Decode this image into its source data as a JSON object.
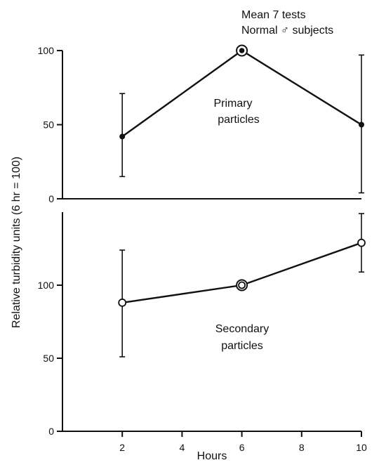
{
  "chart_data": [
    {
      "type": "line",
      "panel": "top",
      "annotation": [
        "Primary",
        "particles"
      ],
      "legend_note": [
        "Mean 7 tests",
        "Normal ♂ subjects"
      ],
      "x": [
        2,
        6,
        10
      ],
      "values": [
        42,
        100,
        50
      ],
      "error_low": [
        15,
        100,
        4
      ],
      "error_high": [
        71,
        100,
        97
      ],
      "marker": "filled",
      "reference_marker_x": 6,
      "ylim": [
        0,
        100
      ],
      "yticks": [
        0,
        50,
        100
      ],
      "ytick_labels": [
        "0",
        "50",
        "100"
      ],
      "xlim": [
        0,
        10
      ]
    },
    {
      "type": "line",
      "panel": "bottom",
      "annotation": [
        "Secondary",
        "particles"
      ],
      "x": [
        2,
        6,
        10
      ],
      "values": [
        88,
        100,
        129
      ],
      "error_low": [
        51,
        100,
        109
      ],
      "error_high": [
        124,
        100,
        149
      ],
      "marker": "open",
      "reference_marker_x": 6,
      "ylim": [
        0,
        150
      ],
      "yticks": [
        0,
        50,
        100
      ],
      "ytick_labels": [
        "0",
        "50",
        "100"
      ],
      "xticks": [
        2,
        4,
        6,
        8,
        10
      ],
      "xtick_labels": [
        "2",
        "4",
        "6",
        "8",
        "10"
      ],
      "xlim": [
        0,
        10
      ]
    }
  ],
  "axes": {
    "xlabel": "Hours",
    "ylabel": "Relative turbidity units (6 hr = 100)"
  },
  "colors": {
    "ink": "#111111",
    "background": "#ffffff"
  }
}
